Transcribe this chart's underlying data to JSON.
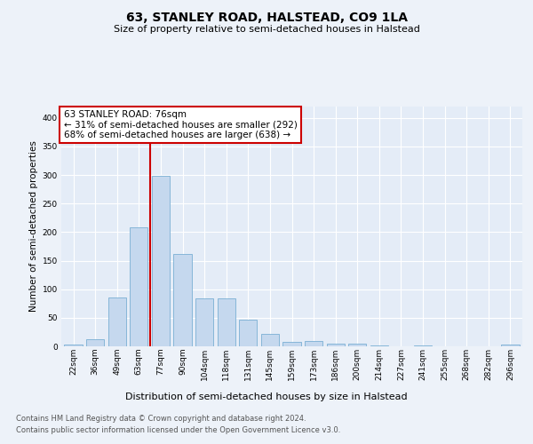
{
  "title": "63, STANLEY ROAD, HALSTEAD, CO9 1LA",
  "subtitle": "Size of property relative to semi-detached houses in Halstead",
  "xlabel": "Distribution of semi-detached houses by size in Halstead",
  "ylabel": "Number of semi-detached properties",
  "footer_line1": "Contains HM Land Registry data © Crown copyright and database right 2024.",
  "footer_line2": "Contains public sector information licensed under the Open Government Licence v3.0.",
  "bin_labels": [
    "22sqm",
    "36sqm",
    "49sqm",
    "63sqm",
    "77sqm",
    "90sqm",
    "104sqm",
    "118sqm",
    "131sqm",
    "145sqm",
    "159sqm",
    "173sqm",
    "186sqm",
    "200sqm",
    "214sqm",
    "227sqm",
    "241sqm",
    "255sqm",
    "268sqm",
    "282sqm",
    "296sqm"
  ],
  "bar_values": [
    3,
    13,
    86,
    209,
    298,
    162,
    84,
    84,
    46,
    22,
    8,
    9,
    5,
    5,
    1,
    0,
    1,
    0,
    0,
    0,
    3
  ],
  "bar_color": "#c5d8ee",
  "bar_edge_color": "#7aafd4",
  "red_line_x": 3.5,
  "red_line_color": "#cc0000",
  "annotation_title": "63 STANLEY ROAD: 76sqm",
  "annotation_line1": "← 31% of semi-detached houses are smaller (292)",
  "annotation_line2": "68% of semi-detached houses are larger (638) →",
  "annotation_box_edgecolor": "#cc0000",
  "ylim": [
    0,
    420
  ],
  "yticks": [
    0,
    50,
    100,
    150,
    200,
    250,
    300,
    350,
    400
  ],
  "bg_color": "#edf2f9",
  "plot_bg_color": "#e4ecf7",
  "grid_color": "#ffffff",
  "title_fontsize": 10,
  "subtitle_fontsize": 8,
  "ylabel_fontsize": 7.5,
  "xlabel_fontsize": 8,
  "tick_fontsize": 6.5,
  "footer_fontsize": 6,
  "annotation_fontsize": 7.5
}
